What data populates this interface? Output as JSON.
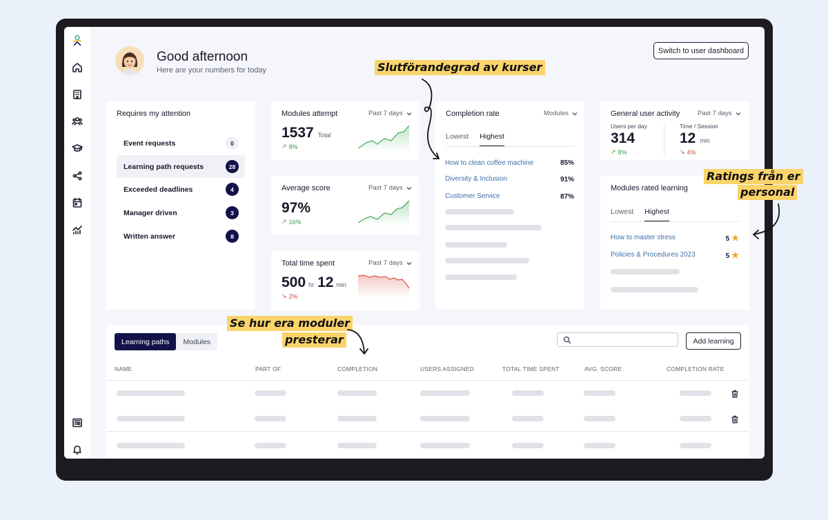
{
  "header": {
    "greeting": "Good afternoon",
    "subtitle": "Here are your numbers for today",
    "switch_button": "Switch to user dashboard"
  },
  "sidebar": {
    "items": [
      {
        "icon": "logo-icon"
      },
      {
        "icon": "home-icon"
      },
      {
        "icon": "building-icon"
      },
      {
        "icon": "users-icon"
      },
      {
        "icon": "graduation-cap-icon"
      },
      {
        "icon": "share-icon"
      },
      {
        "icon": "calendar-icon"
      },
      {
        "icon": "analytics-icon"
      },
      {
        "icon": "newspaper-icon"
      },
      {
        "icon": "bell-icon"
      }
    ]
  },
  "attention": {
    "title": "Requires my attention",
    "items": [
      {
        "label": "Event requests",
        "count": "0"
      },
      {
        "label": "Learning path requests",
        "count": "28"
      },
      {
        "label": "Exceeded deadlines",
        "count": "4"
      },
      {
        "label": "Manager driven",
        "count": "3"
      },
      {
        "label": "Written answer",
        "count": "8"
      }
    ]
  },
  "modules_attempt": {
    "title": "Modules attempt",
    "period": "Past 7 days",
    "value": "1537",
    "unit": "Total",
    "delta": "8%",
    "trend": "up"
  },
  "average_score": {
    "title": "Average score",
    "period": "Past 7 days",
    "value": "97%",
    "delta": "16%",
    "trend": "up"
  },
  "total_time": {
    "title": "Total time spent",
    "period": "Past 7 days",
    "hours": "500",
    "hours_unit": "hr",
    "minutes": "12",
    "minutes_unit": "min",
    "delta": "2%",
    "trend": "down"
  },
  "completion_rate": {
    "title": "Completion rate",
    "filter": "Modules",
    "tabs": [
      "Lowest",
      "Highest"
    ],
    "active_tab": "Highest",
    "items": [
      {
        "name": "How to clean coffee machine",
        "value": "85%"
      },
      {
        "name": "Diversity & Inclusion",
        "value": "91%"
      },
      {
        "name": "Customer Service",
        "value": "87%"
      }
    ]
  },
  "user_activity": {
    "title": "General user activity",
    "period": "Past 7 days",
    "users_label": "Users per day",
    "users_value": "314",
    "users_delta": "8%",
    "time_label": "Time / Session",
    "time_value": "12",
    "time_unit": "min",
    "time_delta": "4%"
  },
  "rated_learning": {
    "title": "Modules rated learning",
    "tabs": [
      "Lowest",
      "Highest"
    ],
    "active_tab": "Highest",
    "items": [
      {
        "name": "How to master stress",
        "rating": "5"
      },
      {
        "name": "Policies & Procedures 2023",
        "rating": "5"
      }
    ]
  },
  "table": {
    "tabs": [
      "Learning paths",
      "Modules"
    ],
    "active_tab": "Learning paths",
    "add_button": "Add learning",
    "search_placeholder": "",
    "columns": [
      "NAME",
      "PART OF",
      "COMPLETION",
      "USERS ASSIGNED",
      "TOTAL TIME SPENT",
      "AVG. SCORE",
      "COMPLETION RATE"
    ]
  },
  "annotations": {
    "completion": "Slutförandegrad av kurser",
    "ratings_line1": "Ratings från er",
    "ratings_line2": "personal",
    "modules_line1": "Se hur era moduler",
    "modules_line2": "presterar"
  },
  "colors": {
    "background": "#ebf1fa",
    "device": "#1c1b20",
    "accent": "#12124a",
    "link": "#3c6fa8",
    "positive": "#3a9a4c",
    "negative": "#d34a3c",
    "highlight": "#f9d46b",
    "star": "#f3a623"
  }
}
